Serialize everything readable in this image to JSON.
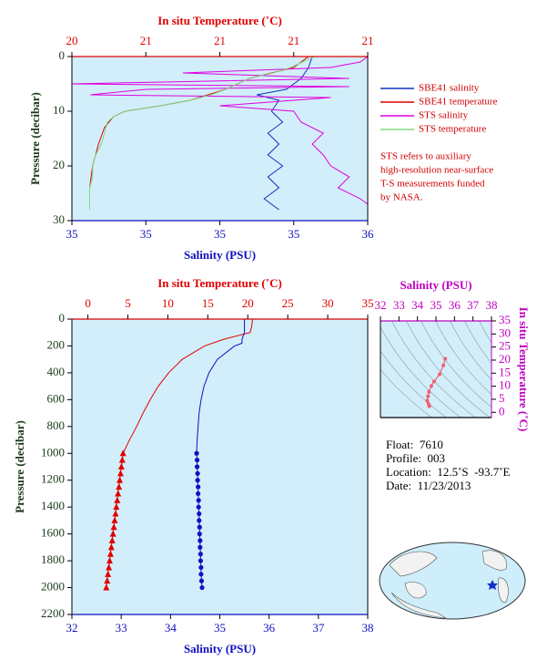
{
  "chart_data": [
    {
      "type": "line",
      "x_label": "Salinity (PSU)",
      "x2_label": "In situ Temperature (˚C)",
      "y_label": "Pressure (decibar)",
      "x_color": "#1010c0",
      "x2_color": "#e00000",
      "y_color": "#1a3a1a",
      "xlim": [
        34.8,
        35.6
      ],
      "xticks": [
        {
          "value": 34.8,
          "label": "35"
        },
        {
          "value": 35.0,
          "label": "35"
        },
        {
          "value": 35.2,
          "label": "35"
        },
        {
          "value": 35.4,
          "label": "35"
        },
        {
          "value": 35.6,
          "label": "36"
        }
      ],
      "x2lim": [
        20.3,
        21.3
      ],
      "x2ticks": [
        {
          "value": 20.3,
          "label": "20"
        },
        {
          "value": 20.55,
          "label": "21"
        },
        {
          "value": 20.8,
          "label": "21"
        },
        {
          "value": 21.05,
          "label": "21"
        },
        {
          "value": 21.3,
          "label": "21"
        }
      ],
      "ylim": [
        0,
        30
      ],
      "yticks": [
        0,
        10,
        20,
        30
      ],
      "invert_y": true,
      "legend": "right",
      "series": [
        {
          "name": "SBE41 salinity",
          "color": "#1030c0",
          "axis": "x",
          "pressure": [
            0,
            2,
            4,
            6,
            7,
            8,
            10,
            12,
            14,
            16,
            18,
            20,
            22,
            24,
            26,
            28
          ],
          "values": [
            35.45,
            35.44,
            35.42,
            35.38,
            35.3,
            35.36,
            35.34,
            35.37,
            35.33,
            35.36,
            35.33,
            35.37,
            35.33,
            35.36,
            35.32,
            35.36
          ]
        },
        {
          "name": "SBE41 temperature",
          "color": "#e00000",
          "axis": "x2",
          "pressure": [
            0,
            2,
            4,
            6,
            8,
            9,
            10,
            11,
            13,
            16,
            20,
            24,
            28
          ],
          "values": [
            21.1,
            21.05,
            20.9,
            20.82,
            20.7,
            20.6,
            20.48,
            20.44,
            20.41,
            20.39,
            20.37,
            20.36,
            20.36
          ]
        },
        {
          "name": "STS salinity",
          "color": "#e000e0",
          "axis": "x",
          "pressure": [
            0,
            1,
            2,
            3,
            4,
            5,
            5.5,
            6,
            7,
            7.5,
            9,
            10,
            12,
            14,
            16,
            18,
            20,
            22,
            24,
            26,
            27
          ],
          "values": [
            35.6,
            35.58,
            35.5,
            35.1,
            35.55,
            34.8,
            35.55,
            35.0,
            34.85,
            35.5,
            35.2,
            35.4,
            35.42,
            35.48,
            35.45,
            35.48,
            35.5,
            35.55,
            35.52,
            35.58,
            35.6
          ]
        },
        {
          "name": "STS temperature",
          "color": "#80d880",
          "axis": "x2",
          "pressure": [
            0,
            1,
            2,
            3,
            4,
            5,
            6,
            7,
            8,
            9,
            10,
            11,
            12,
            14,
            16,
            18,
            20,
            22,
            24,
            26,
            28
          ],
          "values": [
            21.12,
            21.08,
            21.04,
            20.98,
            20.9,
            20.86,
            20.82,
            20.77,
            20.7,
            20.6,
            20.48,
            20.44,
            20.42,
            20.41,
            20.4,
            20.38,
            20.37,
            20.37,
            20.36,
            20.36,
            20.36
          ]
        }
      ],
      "note": [
        "STS refers to auxiliary",
        "high-resolution near-surface",
        "T-S measurements funded",
        "by NASA."
      ]
    },
    {
      "type": "line",
      "x_label": "Salinity (PSU)",
      "x2_label": "In situ Temperature (˚C)",
      "y_label": "Pressure (decibar)",
      "x_color": "#1010c0",
      "x2_color": "#e00000",
      "y_color": "#1a3a1a",
      "xlim": [
        32,
        38
      ],
      "xticks": [
        32,
        33,
        34,
        35,
        36,
        37,
        38
      ],
      "x2lim": [
        -2,
        35
      ],
      "x2ticks": [
        0,
        5,
        10,
        15,
        20,
        25,
        30,
        35
      ],
      "ylim": [
        0,
        2200
      ],
      "yticks": [
        0,
        200,
        400,
        600,
        800,
        1000,
        1200,
        1400,
        1600,
        1800,
        2000,
        2200
      ],
      "invert_y": true,
      "series": [
        {
          "color": "#e00000",
          "axis": "x2",
          "pressure": [
            0,
            50,
            100,
            150,
            200,
            300,
            400,
            500,
            600,
            700,
            800,
            900,
            1000
          ],
          "values": [
            20.6,
            20.5,
            20.3,
            17,
            14.6,
            11.8,
            10.1,
            8.8,
            7.8,
            6.9,
            6.1,
            5.2,
            4.4
          ]
        },
        {
          "color": "#1010c0",
          "axis": "x",
          "pressure": [
            0,
            50,
            100,
            150,
            180,
            200,
            300,
            400,
            500,
            600,
            700,
            800,
            900,
            1000
          ],
          "values": [
            35.5,
            35.5,
            35.5,
            35.45,
            35.45,
            35.3,
            34.95,
            34.78,
            34.68,
            34.62,
            34.58,
            34.56,
            34.54,
            34.53
          ]
        },
        {
          "color": "#e00000",
          "axis": "x2",
          "marker": "triangle",
          "pressure": [
            1000,
            1050,
            1100,
            1150,
            1200,
            1250,
            1300,
            1350,
            1400,
            1450,
            1500,
            1550,
            1600,
            1650,
            1700,
            1750,
            1800,
            1850,
            1900,
            1950,
            2000
          ],
          "values": [
            4.4,
            4.3,
            4.19,
            4.09,
            3.98,
            3.88,
            3.77,
            3.67,
            3.56,
            3.46,
            3.35,
            3.25,
            3.14,
            3.04,
            2.93,
            2.83,
            2.72,
            2.62,
            2.51,
            2.41,
            2.3
          ]
        },
        {
          "color": "#1010c0",
          "axis": "x",
          "marker": "circle",
          "pressure": [
            1000,
            1050,
            1100,
            1150,
            1200,
            1250,
            1300,
            1350,
            1400,
            1450,
            1500,
            1550,
            1600,
            1650,
            1700,
            1750,
            1800,
            1850,
            1900,
            1950,
            2000
          ],
          "values": [
            34.53,
            34.54,
            34.54,
            34.55,
            34.55,
            34.56,
            34.56,
            34.57,
            34.57,
            34.58,
            34.58,
            34.59,
            34.59,
            34.6,
            34.6,
            34.61,
            34.61,
            34.62,
            34.62,
            34.63,
            34.64
          ]
        }
      ]
    },
    {
      "type": "scatter",
      "x_label": "Salinity (PSU)",
      "y_label": "In situ Temperature (˚C)",
      "x_color": "#c000c0",
      "y_color": "#c000c0",
      "x_side": "top",
      "y_side": "right",
      "xlim": [
        32,
        38
      ],
      "xticks": [
        32,
        33,
        34,
        35,
        36,
        37,
        38
      ],
      "ylim": [
        -2,
        35
      ],
      "yticks": [
        0,
        5,
        10,
        15,
        20,
        25,
        30,
        35
      ],
      "series": [
        {
          "color": "#f06070",
          "x": [
            35.5,
            35.4,
            35.2,
            34.9,
            34.75,
            34.62,
            34.57,
            34.53,
            34.6,
            34.64
          ],
          "values": [
            20.5,
            18,
            14.6,
            11.8,
            10.1,
            7.8,
            6.1,
            4.4,
            3.2,
            2.3
          ]
        }
      ]
    }
  ],
  "float_info": [
    "Float:  7610",
    "Profile:  003",
    "Location:  12.5˚S  -93.7˚E",
    "Date:  11/23/2013"
  ]
}
